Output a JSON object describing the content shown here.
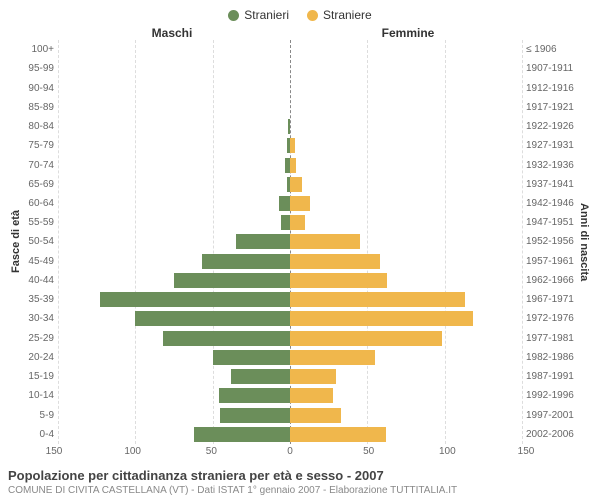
{
  "chart": {
    "type": "population-pyramid",
    "legend": {
      "male": {
        "label": "Stranieri",
        "color": "#6b8e5a"
      },
      "female": {
        "label": "Straniere",
        "color": "#f0b74c"
      }
    },
    "header_male": "Maschi",
    "header_female": "Femmine",
    "ylabel_left": "Fasce di età",
    "ylabel_right": "Anni di nascita",
    "xlim": 150,
    "xticks": [
      150,
      100,
      50,
      0,
      50,
      100,
      150
    ],
    "grid_color": "#dddddd",
    "center_color": "#888888",
    "background_color": "#ffffff",
    "tick_fontsize": 10,
    "label_fontsize": 11,
    "bar_height_pct": 78,
    "age_labels": [
      "100+",
      "95-99",
      "90-94",
      "85-89",
      "80-84",
      "75-79",
      "70-74",
      "65-69",
      "60-64",
      "55-59",
      "50-54",
      "45-49",
      "40-44",
      "35-39",
      "30-34",
      "25-29",
      "20-24",
      "15-19",
      "10-14",
      "5-9",
      "0-4"
    ],
    "birth_labels": [
      "≤ 1906",
      "1907-1911",
      "1912-1916",
      "1917-1921",
      "1922-1926",
      "1927-1931",
      "1932-1936",
      "1937-1941",
      "1942-1946",
      "1947-1951",
      "1952-1956",
      "1957-1961",
      "1962-1966",
      "1967-1971",
      "1972-1976",
      "1977-1981",
      "1982-1986",
      "1987-1991",
      "1992-1996",
      "1997-2001",
      "2002-2006"
    ],
    "male_values": [
      0,
      0,
      0,
      0,
      1,
      2,
      3,
      2,
      7,
      6,
      35,
      57,
      75,
      123,
      100,
      82,
      50,
      38,
      46,
      45,
      62
    ],
    "female_values": [
      0,
      0,
      0,
      0,
      0,
      3,
      4,
      8,
      13,
      10,
      45,
      58,
      63,
      113,
      118,
      98,
      55,
      30,
      28,
      33,
      62
    ]
  },
  "footer": {
    "title": "Popolazione per cittadinanza straniera per età e sesso - 2007",
    "subtitle": "COMUNE DI CIVITA CASTELLANA (VT) - Dati ISTAT 1° gennaio 2007 - Elaborazione TUTTITALIA.IT"
  }
}
